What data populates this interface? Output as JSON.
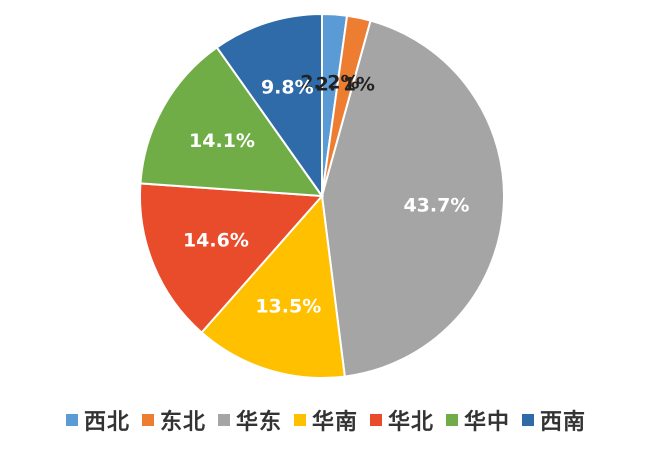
{
  "chart_data": {
    "type": "pie",
    "categories": [
      "西北",
      "东北",
      "华东",
      "华南",
      "华北",
      "华中",
      "西南"
    ],
    "values": [
      2.2,
      2.1,
      43.7,
      13.5,
      14.6,
      14.1,
      9.8
    ],
    "data_labels": [
      "2. 2%",
      "2. 1%",
      "43.7%",
      "13.5%",
      "14.6%",
      "14.1%",
      "9.8%"
    ],
    "colors": [
      "#5B9BD5",
      "#ED7D31",
      "#A5A5A5",
      "#FFC000",
      "#E84C2B",
      "#70AD47",
      "#2E6BA8"
    ],
    "label_colors": [
      "#222222",
      "#222222",
      "#ffffff",
      "#ffffff",
      "#ffffff",
      "#ffffff",
      "#ffffff"
    ],
    "start_angle_deg": 0,
    "direction": "clockwise",
    "legend_placement": "bottom"
  }
}
